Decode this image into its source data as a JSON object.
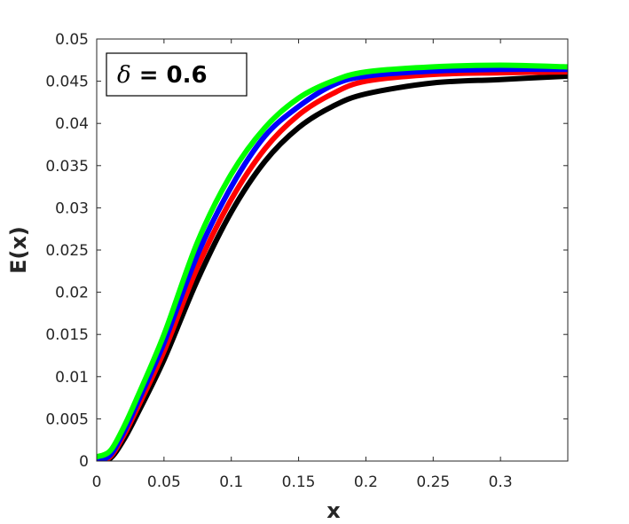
{
  "chart_data": {
    "type": "line",
    "xlabel": "x",
    "ylabel": "E(x)",
    "xlim": [
      0,
      0.35
    ],
    "ylim": [
      0,
      0.05
    ],
    "xticks": [
      0,
      0.05,
      0.1,
      0.15,
      0.2,
      0.25,
      0.3
    ],
    "xtick_labels": [
      "0",
      "0.05",
      "0.1",
      "0.15",
      "0.2",
      "0.25",
      "0.3"
    ],
    "yticks": [
      0,
      0.005,
      0.01,
      0.015,
      0.02,
      0.025,
      0.03,
      0.035,
      0.04,
      0.045,
      0.05
    ],
    "ytick_labels": [
      "0",
      "0.005",
      "0.01",
      "0.015",
      "0.02",
      "0.025",
      "0.03",
      "0.035",
      "0.04",
      "0.045",
      "0.05"
    ],
    "grid": false,
    "box": true,
    "annotation": {
      "symbol": "δ",
      "text": " = 0.6",
      "position": "top-left"
    },
    "x": [
      0,
      0.01,
      0.02,
      0.03,
      0.05,
      0.075,
      0.1,
      0.125,
      0.15,
      0.175,
      0.2,
      0.25,
      0.3,
      0.35
    ],
    "series": [
      {
        "color": "#000000",
        "values": [
          0,
          0.0003,
          0.0025,
          0.0055,
          0.012,
          0.0215,
          0.0295,
          0.0355,
          0.0395,
          0.042,
          0.0435,
          0.0448,
          0.0452,
          0.0456
        ]
      },
      {
        "color": "#ff0000",
        "values": [
          0,
          0.0005,
          0.003,
          0.0062,
          0.013,
          0.023,
          0.031,
          0.037,
          0.041,
          0.0435,
          0.045,
          0.0458,
          0.046,
          0.0461
        ]
      },
      {
        "color": "#0000ff",
        "values": [
          0,
          0.0007,
          0.0034,
          0.0068,
          0.014,
          0.0245,
          0.0325,
          0.0385,
          0.042,
          0.0445,
          0.0456,
          0.0462,
          0.0464,
          0.0464
        ]
      },
      {
        "color": "#00ff00",
        "values": [
          0.0005,
          0.0012,
          0.004,
          0.0075,
          0.015,
          0.026,
          0.034,
          0.0395,
          0.043,
          0.045,
          0.0461,
          0.0467,
          0.0469,
          0.0467
        ]
      }
    ]
  }
}
